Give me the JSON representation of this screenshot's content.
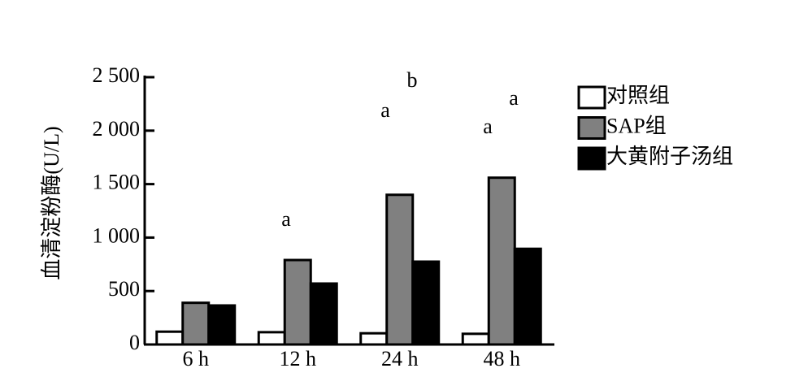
{
  "chart_data": {
    "type": "bar",
    "y_label": "血清淀粉酶(U/L)",
    "categories": [
      "6 h",
      "12 h",
      "24 h",
      "48 h"
    ],
    "series": [
      {
        "name": "对照组",
        "color": "#ffffff",
        "values": [
          120,
          115,
          105,
          100
        ]
      },
      {
        "name": "SAP组",
        "color": "#808080",
        "values": [
          390,
          790,
          1400,
          1560
        ]
      },
      {
        "name": "大黄附子汤组",
        "color": "#000000",
        "values": [
          365,
          570,
          775,
          895
        ]
      }
    ],
    "annotations": [
      "a",
      "a",
      "b",
      "a",
      "a"
    ],
    "ylim": [
      0,
      2500
    ],
    "yticks": [
      0,
      500,
      {
        "value": 1000,
        "label": "1 000"
      },
      {
        "value": 1500,
        "label": "1 500"
      },
      {
        "value": 2000,
        "label": "2 000"
      },
      {
        "value": 2500,
        "label": "2 500"
      }
    ],
    "legend": "right"
  }
}
